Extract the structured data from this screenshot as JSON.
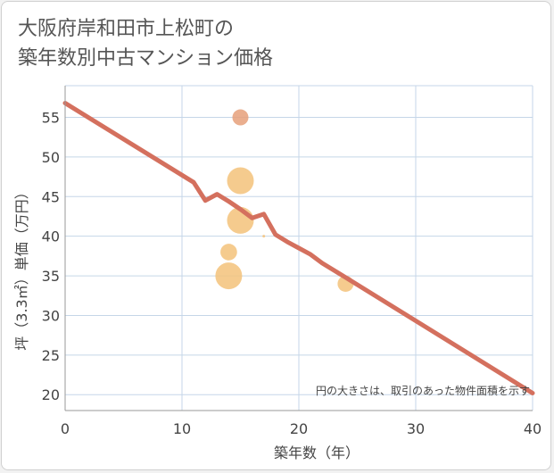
{
  "header": {
    "title_line1": "大阪府岸和田市上松町の",
    "title_line2": "築年数別中古マンション価格"
  },
  "chart_data": {
    "type": "scatter",
    "title": "大阪府岸和田市上松町の築年数別中古マンション価格",
    "xlabel": "築年数（年）",
    "ylabel": "坪（3.3㎡）単価（万円）",
    "xlim": [
      0,
      40
    ],
    "ylim": [
      18,
      59
    ],
    "xticks": [
      0,
      10,
      20,
      30,
      40
    ],
    "yticks": [
      20,
      25,
      30,
      35,
      40,
      45,
      50,
      55
    ],
    "grid": true,
    "note": "円の大きさは、取引のあった物件面積を示す",
    "bubbles": [
      {
        "x": 15,
        "y": 55,
        "size": 1.2
      },
      {
        "x": 15,
        "y": 47,
        "size": 3.0
      },
      {
        "x": 15,
        "y": 42,
        "size": 3.0
      },
      {
        "x": 14,
        "y": 38,
        "size": 1.3
      },
      {
        "x": 14,
        "y": 35,
        "size": 3.0
      },
      {
        "x": 17,
        "y": 40,
        "size": 0.3
      },
      {
        "x": 24,
        "y": 34,
        "size": 1.2
      }
    ],
    "trend": {
      "x": [
        0,
        11,
        12,
        13,
        14,
        15,
        16,
        17,
        18,
        19,
        20,
        21,
        22,
        24,
        40
      ],
      "y": [
        56.8,
        46.8,
        44.5,
        45.3,
        44.4,
        43.4,
        42.3,
        42.8,
        40.2,
        39.3,
        38.5,
        37.7,
        36.6,
        34.8,
        20.2
      ]
    },
    "colors": {
      "bubble": "#f3c27a",
      "bubble_top": "#e6a07a",
      "trend": "#d4705e",
      "grid": "#c5d6e8",
      "axis": "#999999"
    }
  }
}
